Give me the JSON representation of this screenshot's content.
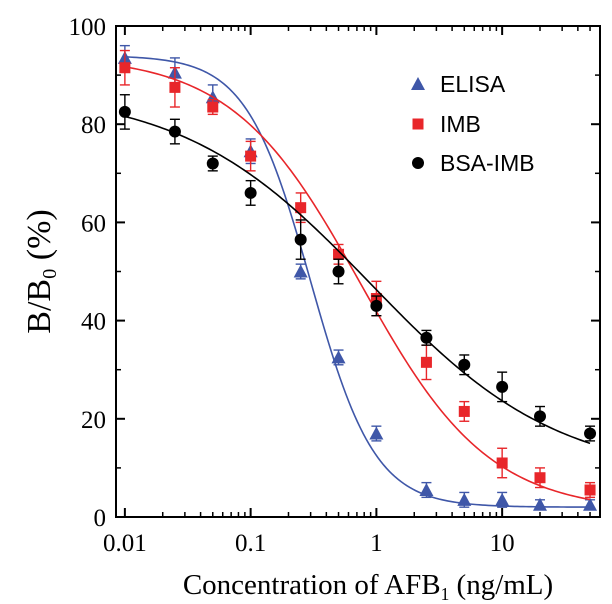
{
  "chart_data": {
    "type": "scatter",
    "xlabel": {
      "main": "Concentration of AFB",
      "sub": "1",
      "tail": " (ng/mL)"
    },
    "ylabel": {
      "main": "B/B",
      "sub": "0",
      "tail": " (%)"
    },
    "x_scale": "log",
    "xlim": [
      0.0085,
      60
    ],
    "ylim": [
      0,
      100
    ],
    "x_ticks": [
      {
        "value": 0.01,
        "label": "0.01"
      },
      {
        "value": 0.1,
        "label": "0.1"
      },
      {
        "value": 1,
        "label": "1"
      },
      {
        "value": 10,
        "label": "10"
      }
    ],
    "y_ticks": [
      {
        "value": 0,
        "label": "0"
      },
      {
        "value": 20,
        "label": "20"
      },
      {
        "value": 40,
        "label": "40"
      },
      {
        "value": 60,
        "label": "60"
      },
      {
        "value": 80,
        "label": "80"
      },
      {
        "value": 100,
        "label": "100"
      }
    ],
    "grid": false,
    "legend_position": "top-right",
    "series": [
      {
        "name": "ELISA",
        "color": "#3f57a8",
        "marker": "triangle",
        "fit": {
          "top": 94,
          "bottom": 2,
          "ic50": 0.3,
          "slope": 1.7
        },
        "points": [
          {
            "x": 0.01,
            "y": 93.5,
            "err": 2.5
          },
          {
            "x": 0.025,
            "y": 90.5,
            "err": 3.0
          },
          {
            "x": 0.05,
            "y": 85.5,
            "err": 2.5
          },
          {
            "x": 0.1,
            "y": 74.5,
            "err": 2.5
          },
          {
            "x": 0.25,
            "y": 50,
            "err": 1.5
          },
          {
            "x": 0.5,
            "y": 32.5,
            "err": 1.5
          },
          {
            "x": 1,
            "y": 17,
            "err": 1.5
          },
          {
            "x": 2.5,
            "y": 5.5,
            "err": 1.5
          },
          {
            "x": 5,
            "y": 3.5,
            "err": 1.5
          },
          {
            "x": 10,
            "y": 3.5,
            "err": 1.5
          },
          {
            "x": 20,
            "y": 2.5,
            "err": 1.0
          },
          {
            "x": 50,
            "y": 2.5,
            "err": 1.0
          }
        ]
      },
      {
        "name": "IMB",
        "color": "#e8262a",
        "marker": "square",
        "fit": {
          "top": 94,
          "bottom": 1,
          "ic50": 0.75,
          "slope": 0.85
        },
        "points": [
          {
            "x": 0.01,
            "y": 91.5,
            "err": 3.5
          },
          {
            "x": 0.025,
            "y": 87.5,
            "err": 4.0
          },
          {
            "x": 0.05,
            "y": 83.5,
            "err": 1.5
          },
          {
            "x": 0.1,
            "y": 73.5,
            "err": 3.0
          },
          {
            "x": 0.25,
            "y": 63,
            "err": 3.0
          },
          {
            "x": 0.5,
            "y": 53.5,
            "err": 2.0
          },
          {
            "x": 1,
            "y": 44.5,
            "err": 3.5
          },
          {
            "x": 2.5,
            "y": 31.5,
            "err": 3.5
          },
          {
            "x": 5,
            "y": 21.5,
            "err": 2.0
          },
          {
            "x": 10,
            "y": 11,
            "err": 3.0
          },
          {
            "x": 20,
            "y": 8,
            "err": 2.0
          },
          {
            "x": 50,
            "y": 5.5,
            "err": 1.5
          }
        ]
      },
      {
        "name": "BSA-IMB",
        "color": "#000000",
        "marker": "circle",
        "fit": {
          "top": 87,
          "bottom": 8,
          "ic50": 0.9,
          "slope": 0.58
        },
        "points": [
          {
            "x": 0.01,
            "y": 82.5,
            "err": 3.5
          },
          {
            "x": 0.025,
            "y": 78.5,
            "err": 2.5
          },
          {
            "x": 0.05,
            "y": 72,
            "err": 1.5
          },
          {
            "x": 0.1,
            "y": 66,
            "err": 2.5
          },
          {
            "x": 0.25,
            "y": 56.5,
            "err": 4.0
          },
          {
            "x": 0.5,
            "y": 50,
            "err": 2.5
          },
          {
            "x": 1,
            "y": 43,
            "err": 2.0
          },
          {
            "x": 2.5,
            "y": 36.5,
            "err": 1.5
          },
          {
            "x": 5,
            "y": 31,
            "err": 2.0
          },
          {
            "x": 10,
            "y": 26.5,
            "err": 3.0
          },
          {
            "x": 20,
            "y": 20.5,
            "err": 2.0
          },
          {
            "x": 50,
            "y": 17,
            "err": 1.5
          }
        ]
      }
    ]
  }
}
